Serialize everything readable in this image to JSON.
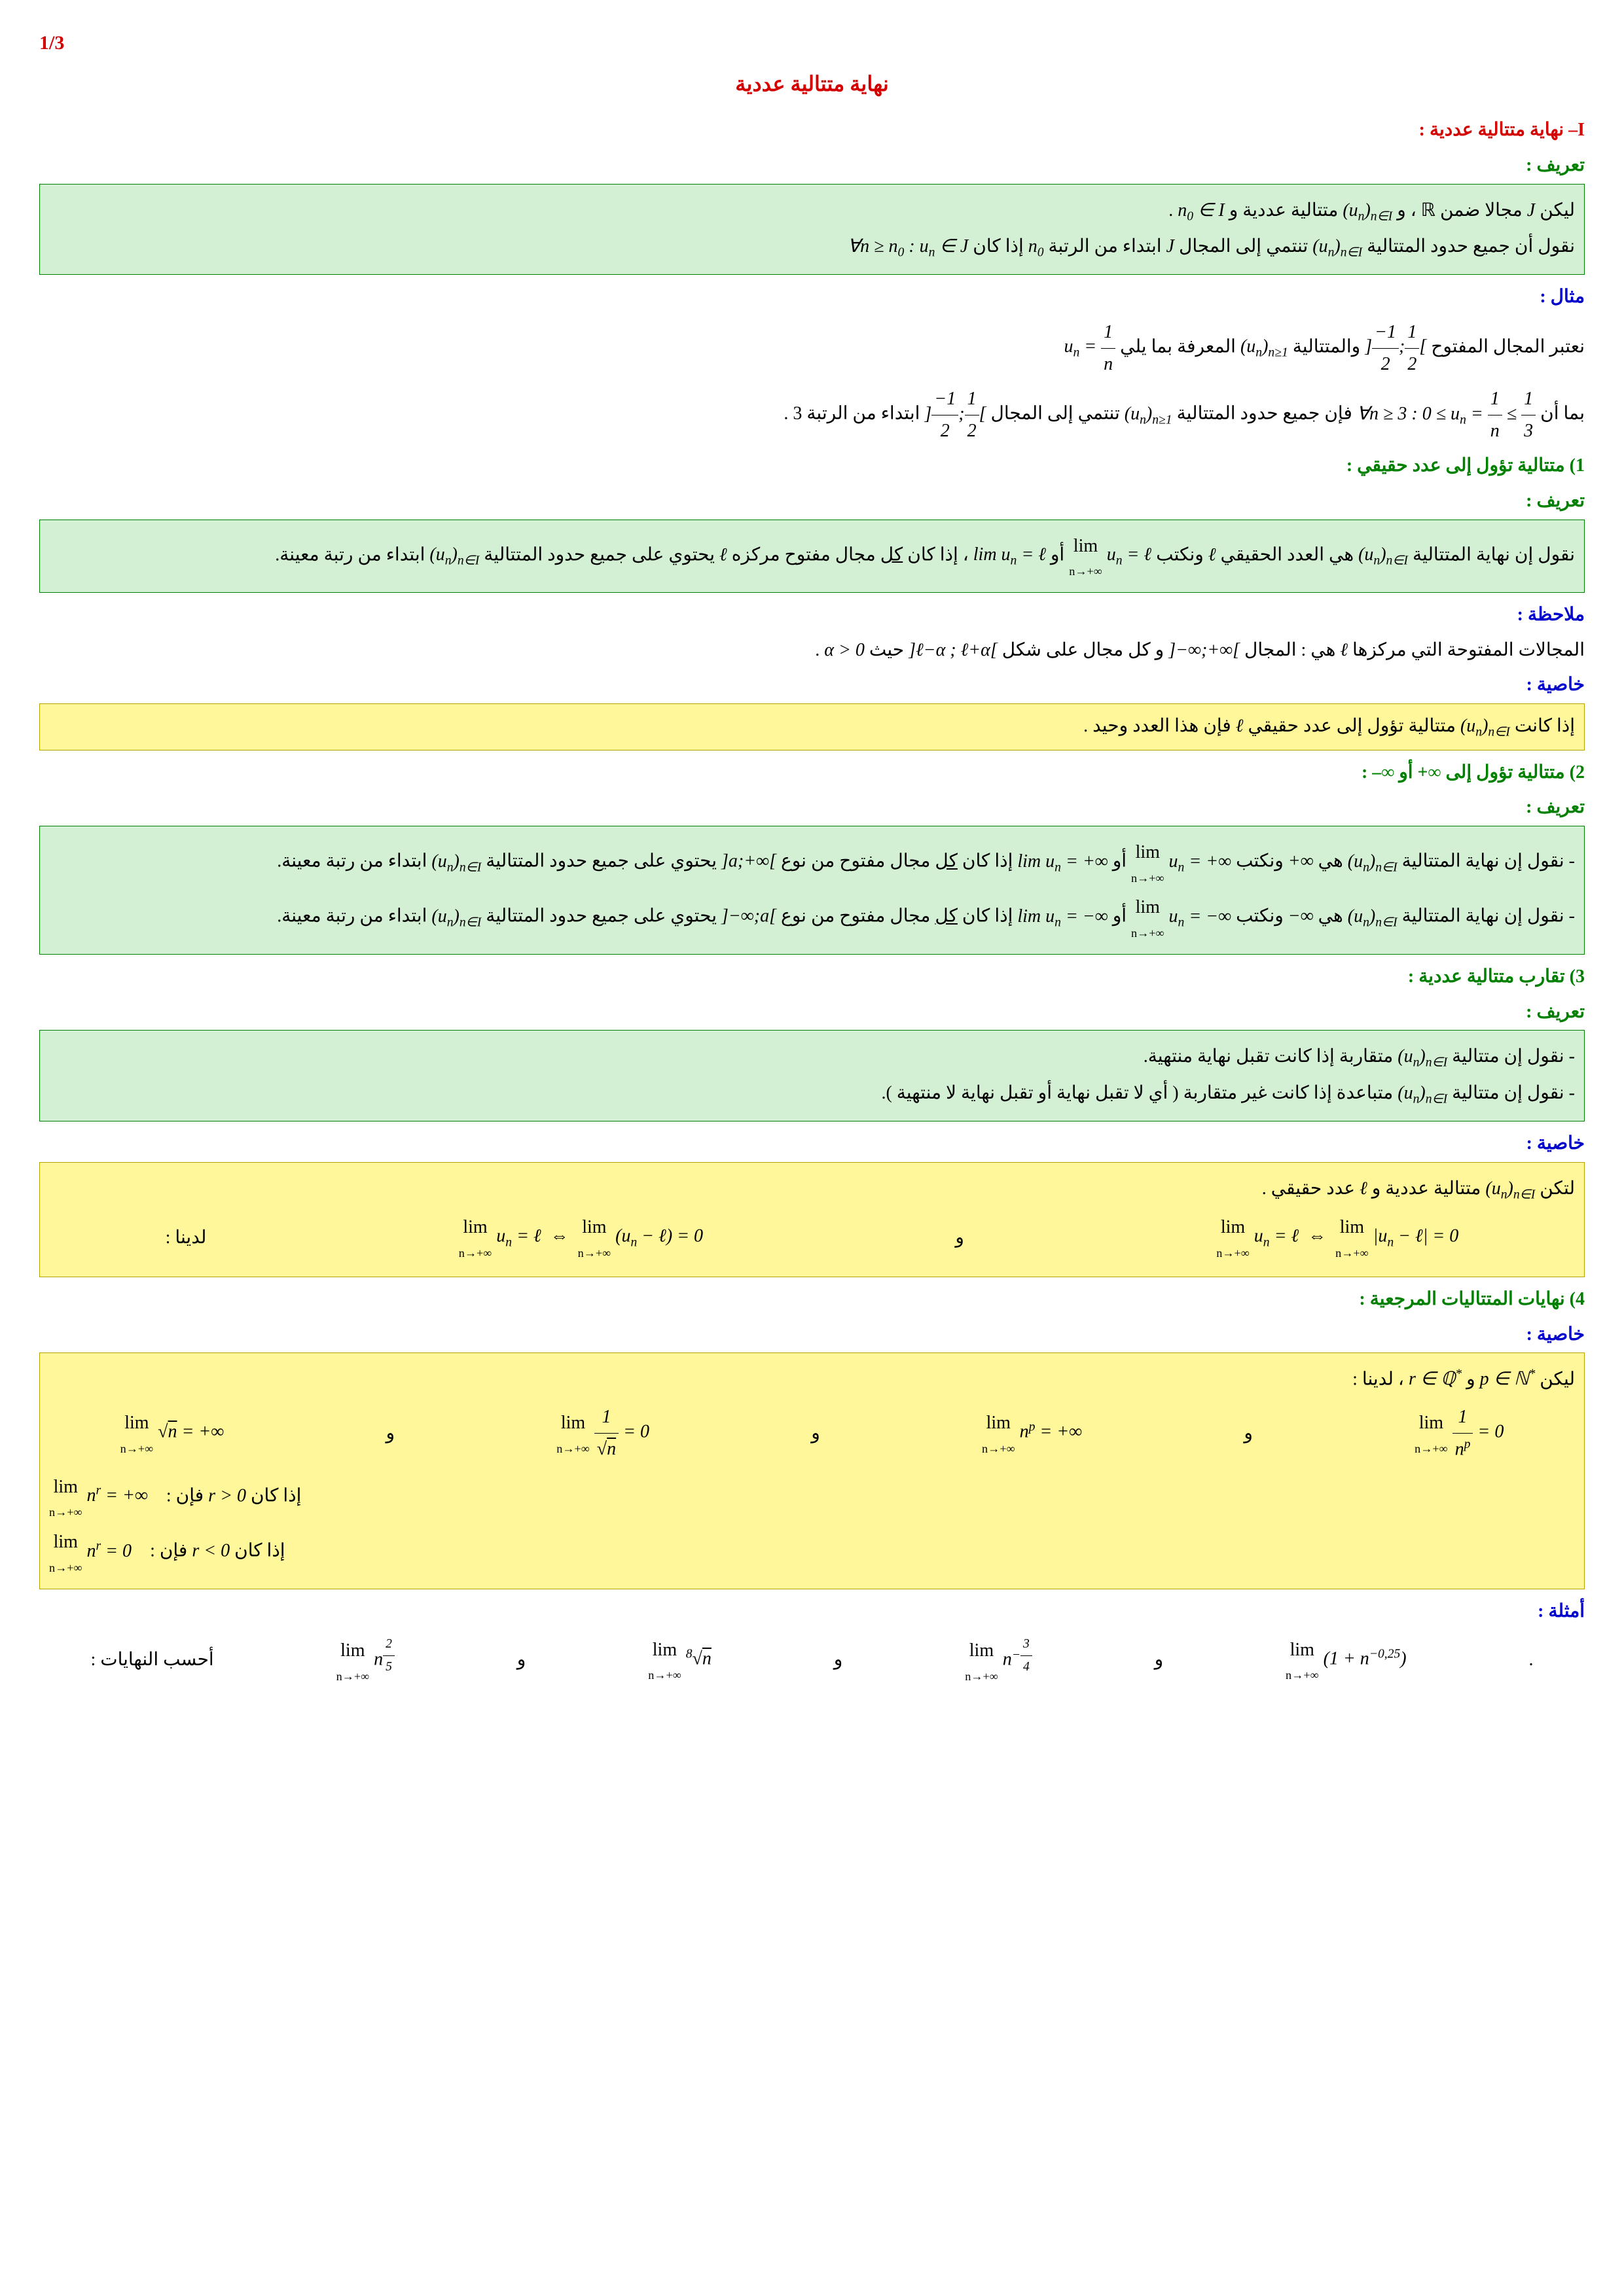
{
  "page_number": "1/3",
  "main_title": "نهاية متتالية عددية",
  "section_I": "I– نهاية متتالية عددية :",
  "def_label": "تعريف :",
  "example_label": "مثال :",
  "note_label": "ملاحظة :",
  "prop_label": "خاصية :",
  "examples_label": "أمثلة :",
  "def1_line1_a": "ليكن ",
  "def1_line1_b": " مجالا ضمن ",
  "def1_line1_c": " ، و ",
  "def1_line1_d": " متتالية عددية و ",
  "def1_line1_e": " .",
  "def1_line2_a": "نقول أن جميع حدود المتتالية ",
  "def1_line2_b": " تنتمي إلى المجال ",
  "def1_line2_c": " ابتداء من الرتبة ",
  "def1_line2_d": " إذا كان ",
  "ex1_line1_a": "نعتبر المجال المفتوح ",
  "ex1_line1_b": " والمتتالية ",
  "ex1_line1_c": " المعرفة بما يلي ",
  "ex1_line2_a": "بما أن ",
  "ex1_line2_b": " فإن جميع حدود المتتالية ",
  "ex1_line2_c": " تنتمي إلى المجال ",
  "ex1_line2_d": " ابتداء من الرتبة 3 .",
  "sub1_title": "1) متتالية تؤول إلى عدد حقيقي :",
  "def2_line1_a": "نقول إن نهاية المتتالية ",
  "def2_line1_b": " هي العدد الحقيقي ",
  "def2_line1_c": " ونكتب ",
  "def2_line1_d": " أو ",
  "def2_line1_e": " ، إذا كان ",
  "def2_line1_f": "كل",
  "def2_line1_g": " مجال مفتوح مركزه ",
  "def2_line1_h": " يحتوي على جميع حدود المتتالية ",
  "def2_line1_i": " ابتداء من رتبة معينة.",
  "note1_a": "المجالات المفتوحة التي مركزها ",
  "note1_b": " هي : المجال ",
  "note1_c": " و كل مجال على شكل ",
  "note1_d": " حيث ",
  "note1_e": " .",
  "prop1_a": "إذا كانت ",
  "prop1_b": " متتالية تؤول إلى عدد حقيقي ",
  "prop1_c": " فإن هذا العدد وحيد .",
  "sub2_title": "2) متتالية تؤول إلى ∞+ أو ∞– :",
  "def3a_a": "- نقول إن نهاية المتتالية ",
  "def3a_b": " هي ",
  "def3a_c": " ونكتب ",
  "def3a_d": " أو ",
  "def3a_e": " إذا كان ",
  "def3a_f": "كل",
  "def3a_g": " مجال مفتوح من نوع ",
  "def3a_h": " يحتوي على جميع حدود المتتالية ",
  "def3a_i": " ابتداء من رتبة معينة.",
  "def3b_a": "- نقول إن نهاية المتتالية ",
  "def3b_b": " هي ",
  "def3b_c": " ونكتب ",
  "def3b_d": " أو ",
  "def3b_e": " إذا كان ",
  "def3b_f": "كل",
  "def3b_g": " مجال مفتوح من نوع ",
  "def3b_h": " يحتوي على جميع حدود المتتالية ",
  "def3b_i": " ابتداء من رتبة معينة.",
  "sub3_title": "3) تقارب متتالية عددية :",
  "def4_a": "- نقول إن متتالية ",
  "def4_b": " متقاربة إذا كانت تقبل نهاية منتهية.",
  "def4_c": "- نقول إن متتالية ",
  "def4_d": " متباعدة إذا كانت غير متقاربة ( أي لا تقبل نهاية أو تقبل نهاية لا منتهية ).",
  "prop2_a": "لتكن ",
  "prop2_b": " متتالية عددية و ",
  "prop2_c": " عدد حقيقي .",
  "prop2_d": "لدينا :",
  "sep_and": "و",
  "sub4_title": "4) نهايات المتتاليات المرجعية :",
  "prop3_a": "ليكن ",
  "prop3_b": " و ",
  "prop3_c": " ، لدينا :",
  "prop3_if_a": "إذا كان ",
  "prop3_if_b": " فإن :",
  "examples_a": "أحسب النهايات :",
  "colors": {
    "red": "#d40000",
    "green": "#008000",
    "blue": "#0000cc",
    "box_green_bg": "#d4f0d4",
    "box_green_border": "#008000",
    "box_yellow_bg": "#fff799",
    "box_yellow_border": "#b8a000"
  }
}
